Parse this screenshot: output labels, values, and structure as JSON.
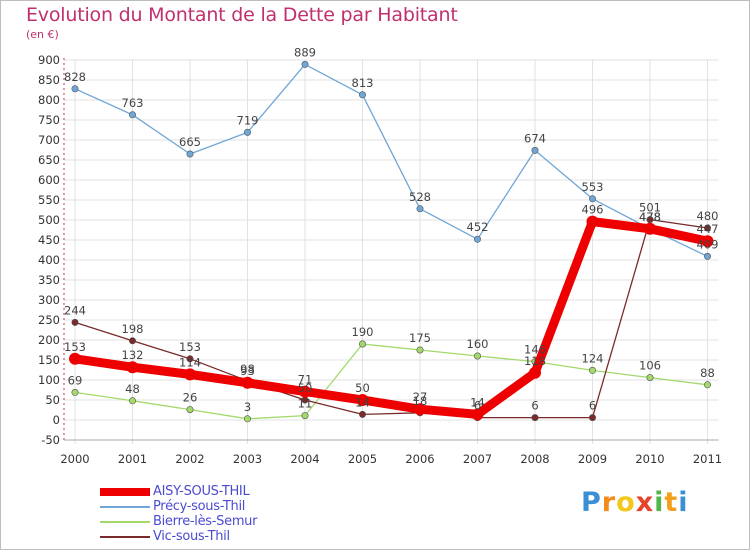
{
  "header": {
    "title": "Evolution du Montant de la Dette par Habitant",
    "subtitle": "(en €)"
  },
  "brand": {
    "logo_text": "Proxiti",
    "letter_colors": [
      "#3a8fd6",
      "#f28c1a",
      "#f2c81a",
      "#e8422a",
      "#4fb848",
      "#f2a01a",
      "#3a8fd6"
    ]
  },
  "chart_data": {
    "type": "line",
    "title": "Evolution du Montant de la Dette par Habitant",
    "subtitle": "(en €)",
    "xlabel": "",
    "ylabel": "",
    "x": [
      "2000",
      "2001",
      "2002",
      "2003",
      "2004",
      "2005",
      "2006",
      "2007",
      "2008",
      "2009",
      "2010",
      "2011"
    ],
    "ylim": [
      -50,
      900
    ],
    "yticks": [
      -50,
      0,
      50,
      100,
      150,
      200,
      250,
      300,
      350,
      400,
      450,
      500,
      550,
      600,
      650,
      700,
      750,
      800,
      850,
      900
    ],
    "grid": true,
    "legend_position": "bottom-left",
    "series": [
      {
        "name": "AISY-SOUS-THIL",
        "color": "#ee0000",
        "values": [
          153,
          132,
          114,
          93,
          71,
          50,
          27,
          14,
          118,
          496,
          478,
          447
        ],
        "labels": [
          "153",
          "132",
          "114",
          "93",
          "71",
          "50",
          "27",
          "14",
          "118",
          "496",
          "478",
          "447"
        ]
      },
      {
        "name": "Précy-sous-Thil",
        "color": "#6fa6d6",
        "values": [
          828,
          763,
          665,
          719,
          889,
          813,
          528,
          452,
          674,
          553,
          478,
          409
        ],
        "labels": [
          "828",
          "763",
          "665",
          "719",
          "889",
          "813",
          "528",
          "452",
          "674",
          "553",
          "478",
          "409"
        ]
      },
      {
        "name": "Bierre-lès-Semur",
        "color": "#a2d96a",
        "values": [
          69,
          48,
          26,
          3,
          11,
          190,
          175,
          160,
          146,
          124,
          106,
          88
        ],
        "labels": [
          "69",
          "48",
          "26",
          "3",
          "11",
          "190",
          "175",
          "160",
          "146",
          "124",
          "106",
          "88"
        ]
      },
      {
        "name": "Vic-sous-Thil",
        "color": "#7a2a2a",
        "values": [
          244,
          198,
          153,
          98,
          50,
          14,
          18,
          6,
          6,
          6,
          501,
          480
        ],
        "labels": [
          "244",
          "198",
          "153",
          "98",
          "50",
          "14",
          "18",
          "6",
          "6",
          "6",
          "501",
          "480"
        ]
      }
    ]
  }
}
